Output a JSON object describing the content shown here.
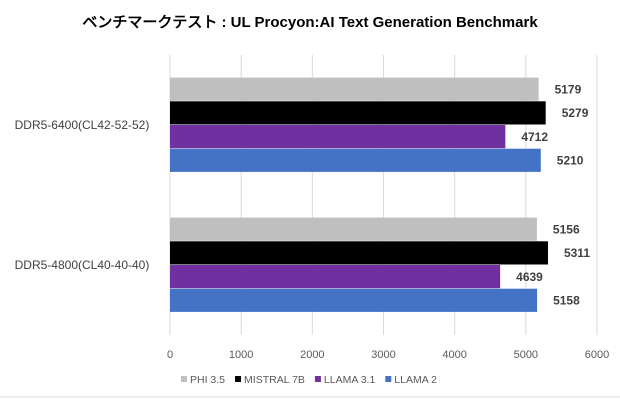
{
  "chart_data": {
    "type": "bar",
    "orientation": "horizontal",
    "title": "ベンチマークテスト : UL Procyon:AI Text Generation Benchmark",
    "xlabel": "",
    "ylabel": "",
    "xlim": [
      0,
      6000
    ],
    "ticks": [
      "0",
      "1000",
      "2000",
      "3000",
      "4000",
      "5000",
      "6000"
    ],
    "tick_values": [
      0,
      1000,
      2000,
      3000,
      4000,
      5000,
      6000
    ],
    "grid": true,
    "legend_position": "bottom",
    "categories": [
      "DDR5-6400(CL42-52-52)",
      "DDR5-4800(CL40-40-40)"
    ],
    "series": [
      {
        "name": "PHI 3.5",
        "color": "#bfbfbf",
        "values": [
          5179,
          5156
        ]
      },
      {
        "name": "MISTRAL 7B",
        "color": "#000000",
        "values": [
          5279,
          5311
        ]
      },
      {
        "name": "LLAMA 3.1",
        "color": "#7030a0",
        "values": [
          4712,
          4639
        ]
      },
      {
        "name": "LLAMA 2",
        "color": "#4472c4",
        "values": [
          5210,
          5158
        ]
      }
    ]
  }
}
